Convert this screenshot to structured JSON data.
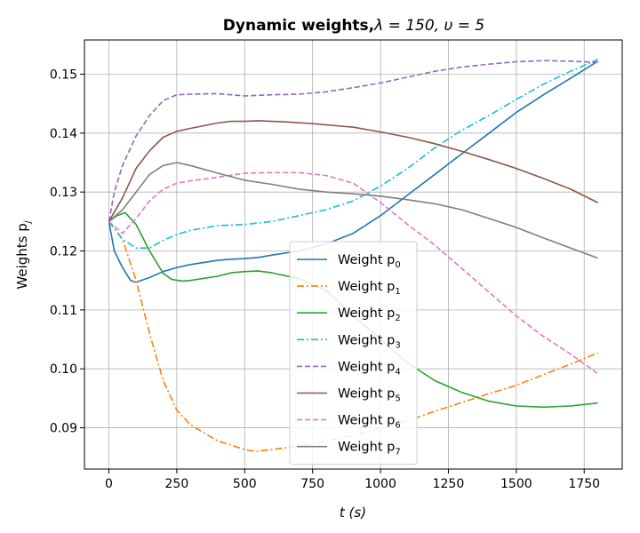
{
  "chart_data": {
    "type": "line",
    "title_bold": "Dynamic weights,",
    "title_rest": "λ = 150, υ = 5",
    "xlabel": "t (s)",
    "ylabel": "Weights p",
    "ylabel_sub": "j",
    "xlim": [
      -90,
      1890
    ],
    "ylim": [
      0.083,
      0.1558
    ],
    "xticks": [
      0,
      250,
      500,
      750,
      1000,
      1250,
      1500,
      1750
    ],
    "yticks": [
      0.09,
      0.1,
      0.11,
      0.12,
      0.13,
      0.14,
      0.15
    ],
    "grid": true,
    "legend_position": "lower-center",
    "series": [
      {
        "name": "Weight p",
        "sub": "0",
        "color": "#1f77b4",
        "dash": "solid",
        "points": [
          [
            0,
            0.125
          ],
          [
            20,
            0.12
          ],
          [
            50,
            0.1172
          ],
          [
            80,
            0.115
          ],
          [
            100,
            0.1147
          ],
          [
            150,
            0.1155
          ],
          [
            200,
            0.1165
          ],
          [
            250,
            0.1172
          ],
          [
            300,
            0.1177
          ],
          [
            400,
            0.1184
          ],
          [
            450,
            0.1186
          ],
          [
            500,
            0.1187
          ],
          [
            550,
            0.1189
          ],
          [
            600,
            0.1193
          ],
          [
            700,
            0.12
          ],
          [
            800,
            0.1212
          ],
          [
            900,
            0.123
          ],
          [
            1000,
            0.126
          ],
          [
            1100,
            0.1295
          ],
          [
            1200,
            0.133
          ],
          [
            1300,
            0.1365
          ],
          [
            1400,
            0.14
          ],
          [
            1500,
            0.1435
          ],
          [
            1600,
            0.1465
          ],
          [
            1700,
            0.1493
          ],
          [
            1800,
            0.1522
          ]
        ]
      },
      {
        "name": "Weight p",
        "sub": "1",
        "color": "#ff7f0e",
        "dash": "dashdot",
        "points": [
          [
            0,
            0.125
          ],
          [
            50,
            0.122
          ],
          [
            100,
            0.115
          ],
          [
            150,
            0.106
          ],
          [
            200,
            0.098
          ],
          [
            250,
            0.093
          ],
          [
            300,
            0.0905
          ],
          [
            400,
            0.0878
          ],
          [
            500,
            0.0863
          ],
          [
            540,
            0.086
          ],
          [
            600,
            0.0863
          ],
          [
            700,
            0.0869
          ],
          [
            800,
            0.0877
          ],
          [
            900,
            0.0887
          ],
          [
            1000,
            0.0899
          ],
          [
            1100,
            0.0912
          ],
          [
            1200,
            0.0928
          ],
          [
            1300,
            0.0943
          ],
          [
            1400,
            0.0958
          ],
          [
            1500,
            0.0972
          ],
          [
            1600,
            0.099
          ],
          [
            1700,
            0.1008
          ],
          [
            1800,
            0.1027
          ]
        ]
      },
      {
        "name": "Weight p",
        "sub": "2",
        "color": "#2ca02c",
        "dash": "solid",
        "points": [
          [
            0,
            0.125
          ],
          [
            30,
            0.126
          ],
          [
            60,
            0.1265
          ],
          [
            100,
            0.1245
          ],
          [
            150,
            0.12
          ],
          [
            200,
            0.1162
          ],
          [
            230,
            0.1152
          ],
          [
            270,
            0.1149
          ],
          [
            300,
            0.115
          ],
          [
            400,
            0.1157
          ],
          [
            450,
            0.1163
          ],
          [
            500,
            0.1165
          ],
          [
            550,
            0.1166
          ],
          [
            600,
            0.1163
          ],
          [
            700,
            0.1153
          ],
          [
            800,
            0.1133
          ],
          [
            900,
            0.109
          ],
          [
            1000,
            0.105
          ],
          [
            1100,
            0.101
          ],
          [
            1200,
            0.098
          ],
          [
            1300,
            0.096
          ],
          [
            1400,
            0.0945
          ],
          [
            1500,
            0.0937
          ],
          [
            1600,
            0.0935
          ],
          [
            1700,
            0.0937
          ],
          [
            1800,
            0.0942
          ]
        ]
      },
      {
        "name": "Weight p",
        "sub": "3",
        "color": "#17becf",
        "dash": "dashdot",
        "points": [
          [
            0,
            0.125
          ],
          [
            50,
            0.122
          ],
          [
            100,
            0.1205
          ],
          [
            150,
            0.1205
          ],
          [
            200,
            0.1218
          ],
          [
            250,
            0.1228
          ],
          [
            300,
            0.1235
          ],
          [
            400,
            0.1243
          ],
          [
            500,
            0.1245
          ],
          [
            600,
            0.125
          ],
          [
            700,
            0.126
          ],
          [
            800,
            0.127
          ],
          [
            900,
            0.1285
          ],
          [
            1000,
            0.131
          ],
          [
            1100,
            0.134
          ],
          [
            1200,
            0.1375
          ],
          [
            1300,
            0.1405
          ],
          [
            1400,
            0.143
          ],
          [
            1500,
            0.1457
          ],
          [
            1600,
            0.1483
          ],
          [
            1700,
            0.1505
          ],
          [
            1800,
            0.1525
          ]
        ]
      },
      {
        "name": "Weight p",
        "sub": "4",
        "color": "#9467bd",
        "dash": "dashed",
        "points": [
          [
            0,
            0.125
          ],
          [
            20,
            0.13
          ],
          [
            50,
            0.1345
          ],
          [
            100,
            0.1395
          ],
          [
            150,
            0.143
          ],
          [
            200,
            0.1455
          ],
          [
            250,
            0.1465
          ],
          [
            300,
            0.1466
          ],
          [
            400,
            0.1467
          ],
          [
            500,
            0.1463
          ],
          [
            600,
            0.1465
          ],
          [
            700,
            0.1466
          ],
          [
            800,
            0.147
          ],
          [
            900,
            0.1477
          ],
          [
            1000,
            0.1485
          ],
          [
            1100,
            0.1495
          ],
          [
            1200,
            0.1505
          ],
          [
            1300,
            0.1512
          ],
          [
            1400,
            0.1517
          ],
          [
            1500,
            0.1521
          ],
          [
            1600,
            0.1523
          ],
          [
            1700,
            0.1522
          ],
          [
            1800,
            0.152
          ]
        ]
      },
      {
        "name": "Weight p",
        "sub": "5",
        "color": "#8c564b",
        "dash": "solid",
        "points": [
          [
            0,
            0.125
          ],
          [
            50,
            0.129
          ],
          [
            100,
            0.134
          ],
          [
            150,
            0.137
          ],
          [
            200,
            0.1393
          ],
          [
            250,
            0.1403
          ],
          [
            300,
            0.1408
          ],
          [
            400,
            0.1417
          ],
          [
            450,
            0.142
          ],
          [
            500,
            0.142
          ],
          [
            550,
            0.1421
          ],
          [
            650,
            0.1419
          ],
          [
            750,
            0.1416
          ],
          [
            900,
            0.141
          ],
          [
            1000,
            0.1402
          ],
          [
            1100,
            0.1393
          ],
          [
            1200,
            0.1382
          ],
          [
            1300,
            0.1369
          ],
          [
            1400,
            0.1355
          ],
          [
            1500,
            0.134
          ],
          [
            1600,
            0.1323
          ],
          [
            1700,
            0.1305
          ],
          [
            1800,
            0.1282
          ]
        ]
      },
      {
        "name": "Weight p",
        "sub": "6",
        "color": "#e377c2",
        "dash": "dashed",
        "points": [
          [
            0,
            0.125
          ],
          [
            50,
            0.123
          ],
          [
            100,
            0.1255
          ],
          [
            150,
            0.1285
          ],
          [
            200,
            0.1305
          ],
          [
            250,
            0.1315
          ],
          [
            300,
            0.1319
          ],
          [
            400,
            0.1325
          ],
          [
            500,
            0.1332
          ],
          [
            600,
            0.1333
          ],
          [
            700,
            0.1333
          ],
          [
            800,
            0.1328
          ],
          [
            900,
            0.1315
          ],
          [
            1000,
            0.1282
          ],
          [
            1100,
            0.1245
          ],
          [
            1200,
            0.121
          ],
          [
            1300,
            0.117
          ],
          [
            1400,
            0.113
          ],
          [
            1500,
            0.109
          ],
          [
            1600,
            0.1055
          ],
          [
            1700,
            0.1025
          ],
          [
            1800,
            0.0992
          ]
        ]
      },
      {
        "name": "Weight p",
        "sub": "7",
        "color": "#7f7f7f",
        "dash": "solid",
        "points": [
          [
            0,
            0.125
          ],
          [
            50,
            0.127
          ],
          [
            100,
            0.13
          ],
          [
            150,
            0.133
          ],
          [
            200,
            0.1345
          ],
          [
            250,
            0.135
          ],
          [
            300,
            0.1345
          ],
          [
            400,
            0.1332
          ],
          [
            500,
            0.132
          ],
          [
            600,
            0.1313
          ],
          [
            700,
            0.1305
          ],
          [
            800,
            0.13
          ],
          [
            900,
            0.1297
          ],
          [
            1000,
            0.1293
          ],
          [
            1100,
            0.1287
          ],
          [
            1200,
            0.128
          ],
          [
            1300,
            0.127
          ],
          [
            1400,
            0.1255
          ],
          [
            1500,
            0.124
          ],
          [
            1600,
            0.1222
          ],
          [
            1700,
            0.1205
          ],
          [
            1800,
            0.1188
          ]
        ]
      }
    ]
  }
}
